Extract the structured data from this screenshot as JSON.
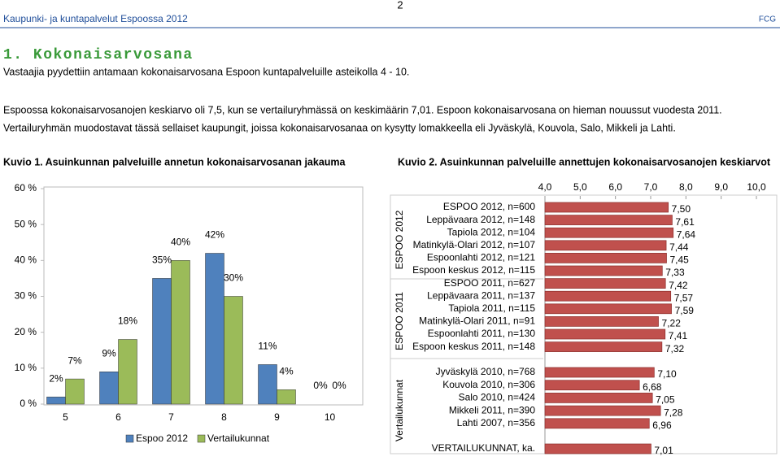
{
  "header": {
    "left": "Kaupunki- ja kuntapalvelut Espoossa 2012",
    "page": "2",
    "right": "FCG"
  },
  "heading": "1. Kokonaisarvosana",
  "subtitle": "Vastaajia pyydettiin antamaan kokonaisarvosana Espoon kuntapalveluille asteikolla 4 - 10.",
  "paragraph": [
    "Espoossa kokonaisarvosanojen keskiarvo oli 7,5, kun se vertailuryhmässä on keskimäärin 7,01. Espoon kokonaisarvosana on hieman nouussut vuodesta 2011.",
    "Vertailuryhmän muodostavat tässä sellaiset kaupungit, joissa kokonaisarvosanaa on kysytty lomakkeella eli Jyväskylä, Kouvola, Salo, Mikkeli  ja Lahti."
  ],
  "chart_data": [
    {
      "type": "bar",
      "title": "Kuvio 1. Asuinkunnan palveluille annetun kokonaisarvosanan jakauma",
      "categories": [
        "5",
        "6",
        "7",
        "8",
        "9",
        "10"
      ],
      "series": [
        {
          "name": "Espoo 2012",
          "color": "#4f81bd",
          "values": [
            2,
            9,
            35,
            42,
            11,
            0
          ],
          "value_labels": [
            "2%",
            "9%",
            "35%",
            "42%",
            "11%",
            "0%"
          ]
        },
        {
          "name": "Vertailukunnat",
          "color": "#9bbb59",
          "values": [
            7,
            18,
            40,
            30,
            4,
            0
          ],
          "value_labels": [
            "7%",
            "18%",
            "40%",
            "30%",
            "4%",
            "0%"
          ]
        }
      ],
      "ylim": [
        0,
        60
      ],
      "yticks": [
        {
          "value": 0,
          "label": "0 %"
        },
        {
          "value": 10,
          "label": "10 %"
        },
        {
          "value": 20,
          "label": "20 %"
        },
        {
          "value": 30,
          "label": "30 %"
        },
        {
          "value": 40,
          "label": "40 %"
        },
        {
          "value": 50,
          "label": "50 %"
        },
        {
          "value": 60,
          "label": "60 %"
        }
      ],
      "legend": "bottom"
    },
    {
      "type": "barh",
      "title": "Kuvio 2. Asuinkunnan palveluille annettujen kokonaisarvosanojen keskiarvot",
      "group_labels": [
        "ESPOO 2012",
        "ESPOO 2011",
        "Vertailukunnat"
      ],
      "categories": [
        "ESPOO 2012, n=600",
        "Leppävaara 2012, n=148",
        "Tapiola 2012, n=104",
        "Matinkylä-Olari 2012, n=107",
        "Espoonlahti 2012, n=121",
        "Espoon keskus 2012, n=115",
        "ESPOO 2011, n=627",
        "Leppävaara 2011, n=137",
        "Tapiola 2011, n=115",
        "Matinkylä-Olari 2011, n=91",
        "Espoonlahti 2011, n=130",
        "Espoon keskus 2011, n=148",
        "Jyväskylä 2010, n=768",
        "Kouvola 2010, n=306",
        "Salo 2010, n=424",
        "Mikkeli 2011, n=390",
        "Lahti 2007, n=356",
        "VERTAILUKUNNAT, ka."
      ],
      "values": [
        7.5,
        7.61,
        7.64,
        7.44,
        7.45,
        7.33,
        7.42,
        7.57,
        7.59,
        7.22,
        7.41,
        7.32,
        7.1,
        6.68,
        7.05,
        7.28,
        6.96,
        7.01
      ],
      "value_labels": [
        "7,50",
        "7,61",
        "7,64",
        "7,44",
        "7,45",
        "7,33",
        "7,42",
        "7,57",
        "7,59",
        "7,22",
        "7,41",
        "7,32",
        "7,10",
        "6,68",
        "7,05",
        "7,28",
        "6,96",
        "7,01"
      ],
      "color": "#c0504d",
      "xlim": [
        4,
        10
      ],
      "xticks": [
        {
          "value": 4,
          "label": "4,0"
        },
        {
          "value": 5,
          "label": "5,0"
        },
        {
          "value": 6,
          "label": "6,0"
        },
        {
          "value": 7,
          "label": "7,0"
        },
        {
          "value": 8,
          "label": "8,0"
        },
        {
          "value": 9,
          "label": "9,0"
        },
        {
          "value": 10,
          "label": "10,0"
        }
      ]
    }
  ]
}
